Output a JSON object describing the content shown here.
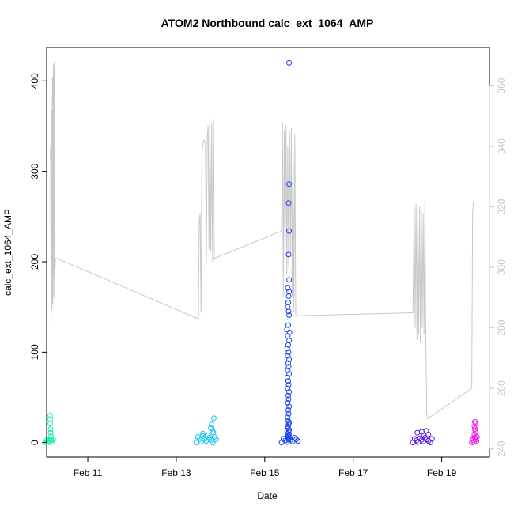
{
  "chart_data": {
    "type": "scatter",
    "title": "ATOM2 Northbound calc_ext_1064_AMP",
    "xlabel": "Date",
    "ylabel": "calc_ext_1064_AMP",
    "xlim": [
      10.07,
      20.08
    ],
    "ylim": [
      -16,
      437
    ],
    "y2lim": [
      237.3,
      372.7
    ],
    "xticks": [
      {
        "value": 11,
        "label": "Feb 11"
      },
      {
        "value": 13,
        "label": "Feb 13"
      },
      {
        "value": 15,
        "label": "Feb 15"
      },
      {
        "value": 17,
        "label": "Feb 17"
      },
      {
        "value": 19,
        "label": "Feb 19"
      }
    ],
    "yticks": [
      0,
      100,
      200,
      300,
      400
    ],
    "y2ticks": [
      240,
      260,
      280,
      300,
      320,
      340,
      360
    ],
    "scatter_groups": [
      {
        "color": "#1bf0a8",
        "x": [
          10.15,
          10.15,
          10.15,
          10.16,
          10.16,
          10.17,
          10.17
        ],
        "y": [
          30,
          26,
          21,
          15,
          11,
          7,
          4
        ],
        "band": {
          "x0": 10.05,
          "x1": 10.22,
          "ymax": 4
        }
      },
      {
        "color": "#14c4f2",
        "x": [
          13.85,
          13.8,
          13.78,
          13.82,
          13.84,
          13.72,
          13.6
        ],
        "y": [
          27,
          20,
          16,
          13,
          11,
          8,
          10
        ],
        "band": {
          "x0": 13.45,
          "x1": 13.9,
          "ymax": 9
        }
      },
      {
        "color": "#1a44f0",
        "x": [
          15.55,
          15.55,
          15.54,
          15.55,
          15.54,
          15.55,
          15.55,
          15.54,
          15.52,
          15.53,
          15.52,
          15.54,
          15.55,
          15.53,
          15.5,
          15.56,
          15.52,
          15.55,
          15.53,
          15.51,
          15.54,
          15.52,
          15.55,
          15.53,
          15.54,
          15.52,
          15.55,
          15.51,
          15.53,
          15.54,
          15.52,
          15.55,
          15.53,
          15.54,
          15.52,
          15.55,
          15.53,
          15.54,
          15.52,
          15.53,
          15.55,
          15.54,
          15.52,
          15.53,
          15.55,
          15.54,
          15.52,
          15.55,
          15.53,
          15.54,
          15.52,
          15.53,
          15.55,
          15.54
        ],
        "y": [
          420,
          286,
          265,
          234,
          208,
          180,
          167,
          162,
          171,
          155,
          150,
          145,
          141,
          130,
          125,
          122,
          118,
          113,
          108,
          104,
          100,
          96,
          92,
          88,
          84,
          80,
          76,
          72,
          68,
          64,
          60,
          56,
          52,
          48,
          44,
          40,
          36,
          32,
          28,
          24,
          22,
          20,
          18,
          16,
          14,
          12,
          10,
          9,
          8,
          7,
          6,
          5,
          4,
          3
        ],
        "band": {
          "x0": 15.38,
          "x1": 15.75,
          "ymax": 6
        }
      },
      {
        "color": "#5a18ee",
        "x": [
          18.65,
          18.55,
          18.45,
          18.7,
          18.6
        ],
        "y": [
          13,
          12,
          11,
          9,
          8
        ],
        "band": {
          "x0": 18.35,
          "x1": 18.78,
          "ymax": 6
        }
      },
      {
        "color": "#ee18ee",
        "x": [
          19.75,
          19.76,
          19.74,
          19.75,
          19.76,
          19.74
        ],
        "y": [
          23,
          21,
          18,
          15,
          12,
          9
        ],
        "band": {
          "x0": 19.68,
          "x1": 19.8,
          "ymax": 7
        }
      }
    ],
    "line_series": {
      "axis": "right",
      "color": "#c8c8c8",
      "x": [
        10.15,
        10.16,
        10.17,
        10.18,
        10.19,
        10.2,
        10.21,
        10.22,
        10.23,
        10.24,
        10.25,
        10.27,
        10.28,
        10.29,
        10.3,
        13.5,
        13.52,
        13.54,
        13.56,
        13.58,
        13.6,
        13.62,
        13.64,
        13.66,
        13.68,
        13.7,
        13.72,
        13.74,
        13.76,
        13.78,
        13.8,
        13.82,
        13.84,
        13.86,
        15.38,
        15.4,
        15.42,
        15.44,
        15.46,
        15.48,
        15.5,
        15.52,
        15.54,
        15.56,
        15.58,
        15.6,
        15.62,
        15.64,
        15.66,
        15.68,
        15.7,
        18.35,
        18.38,
        18.4,
        18.42,
        18.44,
        18.46,
        18.48,
        18.5,
        18.52,
        18.54,
        18.56,
        18.58,
        18.6,
        18.62,
        18.64,
        18.66,
        18.68,
        19.68,
        19.7,
        19.72,
        19.74
      ],
      "y": [
        336,
        340,
        281,
        352,
        286,
        363,
        288,
        367,
        290,
        368,
        297,
        303,
        303,
        303,
        303,
        283,
        315,
        318,
        285,
        338,
        340,
        342,
        342,
        341,
        301,
        343,
        347,
        306,
        349,
        305,
        348,
        302,
        349,
        303,
        312,
        348,
        290,
        345,
        300,
        347,
        298,
        340,
        300,
        345,
        305,
        346,
        290,
        340,
        285,
        344,
        284,
        285,
        320,
        280,
        321,
        276,
        320,
        278,
        320,
        275,
        319,
        280,
        318,
        278,
        322,
        279,
        252,
        250,
        260,
        318,
        322,
        321
      ]
    }
  }
}
